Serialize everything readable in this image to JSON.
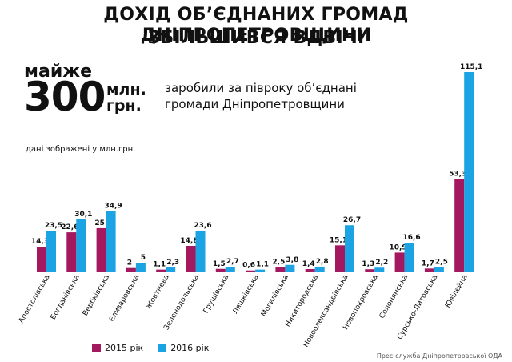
{
  "header": {
    "title_line1": "ДОХІД ОБ’ЄДНАНИХ ГРОМАД ДНІПРОПЕТРОВЩИНИ",
    "title_line2": "ЗБІЛЬШИВСЯ ВДВІЧІ"
  },
  "highlight": {
    "prefix": "майже",
    "number": "300",
    "unit_line1": "млн.",
    "unit_line2": "грн.",
    "description_line1": "заробили за півроку об’єднані",
    "description_line2": "громади Дніпропетровщини"
  },
  "note": "дані зображені у млн.грн.",
  "credit": "Прес-служба Дніпропетровської ОДА",
  "colors": {
    "series_2015": "#a3185e",
    "series_2016": "#1ca3e3"
  },
  "chart_data": {
    "type": "bar",
    "title": "ДОХІД ОБ’ЄДНАНИХ ГРОМАД ДНІПРОПЕТРОВЩИНИ ЗБІЛЬШИВСЯ ВДВІЧІ",
    "ylabel": "",
    "xlabel": "",
    "ylim": [
      0,
      120
    ],
    "grid": false,
    "legend_position": "bottom-left",
    "categories": [
      "Апостолівська",
      "Богданівська",
      "Вербківська",
      "Єлизаровська",
      "Жовтнева",
      "Зеленодольська",
      "Грушівська",
      "Ляшківська",
      "Могилівська",
      "Никитородська",
      "Новоолександрівська",
      "Новопокровська",
      "Солонянська",
      "Сурсько-Литовська",
      "Ювілейна"
    ],
    "series": [
      {
        "name": "2015 рік",
        "color": "#a3185e",
        "values": [
          14.3,
          22.6,
          25,
          2,
          1.1,
          14.8,
          1.5,
          0.6,
          2.5,
          1.4,
          15.1,
          1.3,
          10.9,
          1.7,
          53.3
        ],
        "labels": [
          "14,3",
          "22,6",
          "25",
          "2",
          "1,1",
          "14,8",
          "1,5",
          "0,6",
          "2,5",
          "1,4",
          "15,1",
          "1,3",
          "10,9",
          "1,7",
          "53,3"
        ]
      },
      {
        "name": "2016 рік",
        "color": "#1ca3e3",
        "values": [
          23.5,
          30.1,
          34.9,
          5,
          2.3,
          23.6,
          2.7,
          1.1,
          3.8,
          2.8,
          26.7,
          2.2,
          16.6,
          2.5,
          115.1
        ],
        "labels": [
          "23,5",
          "30,1",
          "34,9",
          "5",
          "2,3",
          "23,6",
          "2,7",
          "1,1",
          "3,8",
          "2,8",
          "26,7",
          "2,2",
          "16,6",
          "2,5",
          "115,1"
        ]
      }
    ]
  }
}
